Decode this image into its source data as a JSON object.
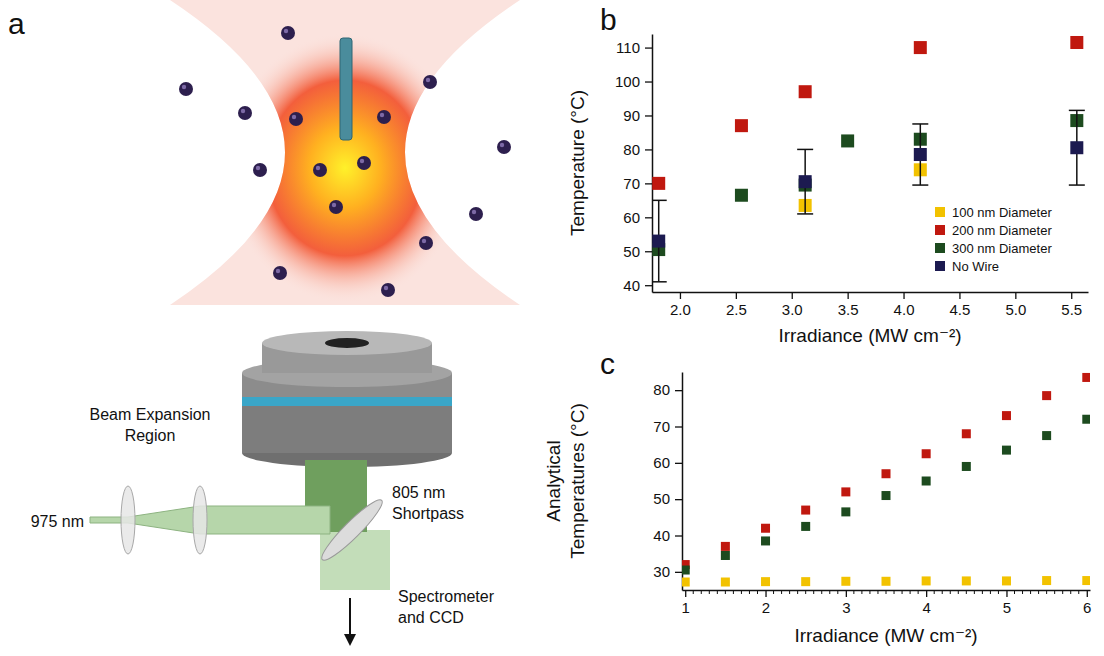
{
  "chart_data": [
    {
      "type": "scatter",
      "annotations": [
        "b"
      ],
      "x_label": "Irradiance (MW cm⁻²)",
      "y_label": "Temperature (°C)",
      "xlim": [
        1.75,
        5.65
      ],
      "xticks": [
        {
          "value": 2,
          "label": "2.0"
        },
        2.5,
        {
          "value": 3,
          "label": "3.0"
        },
        3.5,
        {
          "value": 4,
          "label": "4.0"
        },
        4.5,
        {
          "value": 5,
          "label": "5.0"
        },
        5.5
      ],
      "ylim": [
        38,
        114
      ],
      "yticks": [
        40,
        50,
        60,
        70,
        80,
        90,
        100,
        110
      ],
      "legend": "lower right",
      "marker": "square",
      "series": [
        {
          "name": "100 nm Diameter",
          "color": "#f2c200",
          "x": [
            3.12,
            4.15
          ],
          "values": [
            63.5,
            74
          ]
        },
        {
          "name": "200 nm Diameter",
          "color": "#c0180f",
          "x": [
            1.81,
            2.55,
            3.12,
            4.15,
            5.55
          ],
          "values": [
            70,
            87,
            97,
            110,
            111.5
          ]
        },
        {
          "name": "300 nm Diameter",
          "color": "#1d4b1f",
          "x": [
            1.81,
            2.55,
            3.12,
            3.5,
            4.15,
            5.55
          ],
          "values": [
            50.5,
            66.5,
            69.5,
            82.5,
            83,
            88.5
          ]
        },
        {
          "name": "No Wire",
          "color": "#1c1a50",
          "x": [
            1.81,
            3.12,
            4.15,
            5.55
          ],
          "values": [
            53,
            70.5,
            78.5,
            80.5
          ],
          "errors": [
            12,
            9.5,
            9,
            11
          ]
        }
      ]
    },
    {
      "type": "scatter",
      "annotations": [
        "c"
      ],
      "x_label": "Irradiance (MW cm⁻²)",
      "y_label": [
        "Analytical",
        "Temperatures (°C)"
      ],
      "xlim": [
        0.96,
        6.04
      ],
      "xticks": [
        1,
        2,
        3,
        4,
        5,
        6
      ],
      "minor_xticks": [
        1.1,
        1.2,
        1.3,
        1.4,
        1.5,
        1.6,
        1.7,
        1.8,
        1.9,
        2.1,
        2.2,
        2.3,
        2.4,
        2.5,
        2.6,
        2.7,
        2.8,
        2.9,
        3.1,
        3.2,
        3.3,
        3.4,
        3.5,
        3.6,
        3.7,
        3.8,
        3.9,
        4.1,
        4.2,
        4.3,
        4.4,
        4.5,
        4.6,
        4.7,
        4.8,
        4.9,
        5.1,
        5.2,
        5.3,
        5.4,
        5.5,
        5.6,
        5.7,
        5.8,
        5.9
      ],
      "ylim": [
        25,
        85
      ],
      "yticks": [
        30,
        40,
        50,
        60,
        70,
        80
      ],
      "marker": "square",
      "x": [
        1,
        1.5,
        2,
        2.5,
        3,
        3.5,
        4,
        4.5,
        5,
        5.5,
        6
      ],
      "series": [
        {
          "name": "100 nm Diameter",
          "color": "#f2c200",
          "values": [
            27.2,
            27.2,
            27.3,
            27.3,
            27.4,
            27.4,
            27.5,
            27.5,
            27.5,
            27.6,
            27.6
          ]
        },
        {
          "name": "200 nm Diameter",
          "color": "#c0180f",
          "values": [
            32,
            37,
            42,
            47,
            52,
            57,
            62.5,
            68,
            73,
            78.5,
            83.5
          ]
        },
        {
          "name": "300 nm Diameter",
          "color": "#1d4b1f",
          "values": [
            30.5,
            34.5,
            38.5,
            42.5,
            46.5,
            51,
            55,
            59,
            63.5,
            67.5,
            72
          ]
        }
      ]
    }
  ],
  "diagram": {
    "letter": "a",
    "beam_label": "975 nm",
    "expansion_label": [
      "Beam Expansion",
      "Region"
    ],
    "filter_label": [
      "805 nm",
      "Shortpass"
    ],
    "detector_label": [
      "Spectrometer",
      "and CCD"
    ]
  }
}
